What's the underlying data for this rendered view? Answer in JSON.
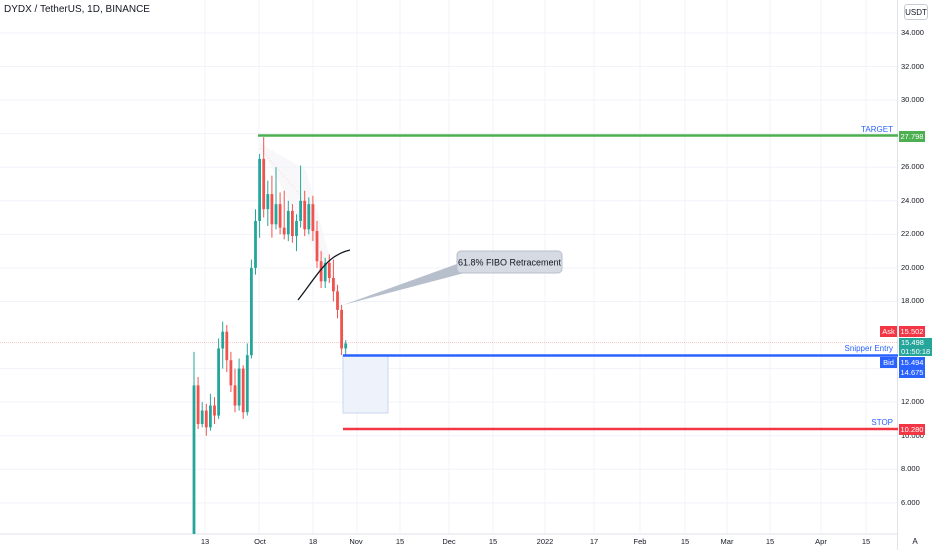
{
  "header": {
    "symbol_title": "DYDX / TetherUS, 1D, BINANCE",
    "currency_button": "USDT"
  },
  "price_axis": {
    "ticks": [
      "34.000",
      "32.000",
      "30.000",
      "28.000",
      "26.000",
      "24.000",
      "22.000",
      "20.000",
      "18.000",
      "14.000",
      "12.000",
      "10.000",
      "8.000",
      "6.000"
    ],
    "tick_values": [
      34,
      32,
      30,
      28,
      26,
      24,
      22,
      20,
      18,
      14,
      12,
      10,
      8,
      6
    ]
  },
  "time_axis": {
    "labels": [
      "13",
      "Oct",
      "18",
      "Nov",
      "15",
      "Dec",
      "15",
      "2022",
      "17",
      "Feb",
      "15",
      "Mar",
      "15",
      "Apr",
      "15"
    ]
  },
  "auto_label": "A",
  "price_labels": {
    "ask_tag": "Ask",
    "ask_price": "15.502",
    "last_price": "15.498",
    "countdown": "01:50:18",
    "bid_tag": "Bid",
    "bid_price": "15.494",
    "entry_price": "14.675",
    "target_price": "27.798",
    "stop_price": "10.280"
  },
  "annotations": {
    "target": "TARGET",
    "entry": "Snipper Entry",
    "stop": "STOP",
    "fibo": "61.8% FIBO Retracement"
  },
  "colors": {
    "up": "#26a69a",
    "down": "#ef5350",
    "target_line": "#4caf50",
    "entry_line": "#2962ff",
    "stop_line": "#f23645",
    "grid": "#f0f3fa"
  },
  "chart_data": {
    "type": "candlestick",
    "candles": [
      {
        "o": 1.0,
        "h": 15.0,
        "l": 0.9,
        "c": 13.0
      },
      {
        "o": 13.0,
        "h": 13.5,
        "l": 10.4,
        "c": 10.7
      },
      {
        "o": 10.7,
        "h": 12.0,
        "l": 10.5,
        "c": 11.5
      },
      {
        "o": 11.5,
        "h": 11.9,
        "l": 10.0,
        "c": 10.5
      },
      {
        "o": 10.5,
        "h": 12.5,
        "l": 10.3,
        "c": 11.8
      },
      {
        "o": 11.8,
        "h": 12.3,
        "l": 10.7,
        "c": 11.2
      },
      {
        "o": 11.2,
        "h": 15.8,
        "l": 11.0,
        "c": 15.2
      },
      {
        "o": 15.2,
        "h": 16.8,
        "l": 14.0,
        "c": 16.2
      },
      {
        "o": 16.2,
        "h": 16.6,
        "l": 13.8,
        "c": 14.5
      },
      {
        "o": 14.5,
        "h": 15.0,
        "l": 12.6,
        "c": 13.0
      },
      {
        "o": 13.0,
        "h": 14.0,
        "l": 11.4,
        "c": 11.8
      },
      {
        "o": 11.8,
        "h": 14.6,
        "l": 11.5,
        "c": 14.0
      },
      {
        "o": 14.0,
        "h": 14.2,
        "l": 11.0,
        "c": 11.4
      },
      {
        "o": 11.4,
        "h": 15.5,
        "l": 11.2,
        "c": 14.8
      },
      {
        "o": 14.8,
        "h": 20.5,
        "l": 14.6,
        "c": 20.0
      },
      {
        "o": 20.0,
        "h": 23.5,
        "l": 19.6,
        "c": 22.8
      },
      {
        "o": 22.8,
        "h": 26.8,
        "l": 21.8,
        "c": 26.5
      },
      {
        "o": 26.5,
        "h": 27.8,
        "l": 23.0,
        "c": 23.5
      },
      {
        "o": 23.5,
        "h": 25.2,
        "l": 22.5,
        "c": 24.4
      },
      {
        "o": 24.4,
        "h": 25.5,
        "l": 21.8,
        "c": 22.6
      },
      {
        "o": 22.6,
        "h": 26.0,
        "l": 22.3,
        "c": 23.8
      },
      {
        "o": 23.8,
        "h": 24.5,
        "l": 22.0,
        "c": 22.4
      },
      {
        "o": 22.4,
        "h": 24.6,
        "l": 21.7,
        "c": 22.0
      },
      {
        "o": 22.0,
        "h": 24.0,
        "l": 21.6,
        "c": 23.4
      },
      {
        "o": 23.4,
        "h": 23.8,
        "l": 21.5,
        "c": 21.9
      },
      {
        "o": 21.9,
        "h": 23.2,
        "l": 21.0,
        "c": 22.8
      },
      {
        "o": 22.8,
        "h": 26.1,
        "l": 22.4,
        "c": 24.0
      },
      {
        "o": 24.0,
        "h": 24.6,
        "l": 21.9,
        "c": 22.3
      },
      {
        "o": 22.3,
        "h": 24.2,
        "l": 22.0,
        "c": 23.8
      },
      {
        "o": 23.8,
        "h": 24.3,
        "l": 21.6,
        "c": 22.2
      },
      {
        "o": 22.2,
        "h": 22.8,
        "l": 20.0,
        "c": 20.4
      },
      {
        "o": 20.4,
        "h": 21.0,
        "l": 18.8,
        "c": 19.2
      },
      {
        "o": 19.2,
        "h": 20.6,
        "l": 18.8,
        "c": 20.3
      },
      {
        "o": 20.3,
        "h": 20.8,
        "l": 19.1,
        "c": 19.4
      },
      {
        "o": 19.4,
        "h": 20.5,
        "l": 18.0,
        "c": 18.6
      },
      {
        "o": 18.6,
        "h": 19.0,
        "l": 17.0,
        "c": 17.5
      },
      {
        "o": 17.5,
        "h": 17.8,
        "l": 14.8,
        "c": 15.2
      },
      {
        "o": 15.2,
        "h": 15.7,
        "l": 14.8,
        "c": 15.5
      }
    ]
  }
}
